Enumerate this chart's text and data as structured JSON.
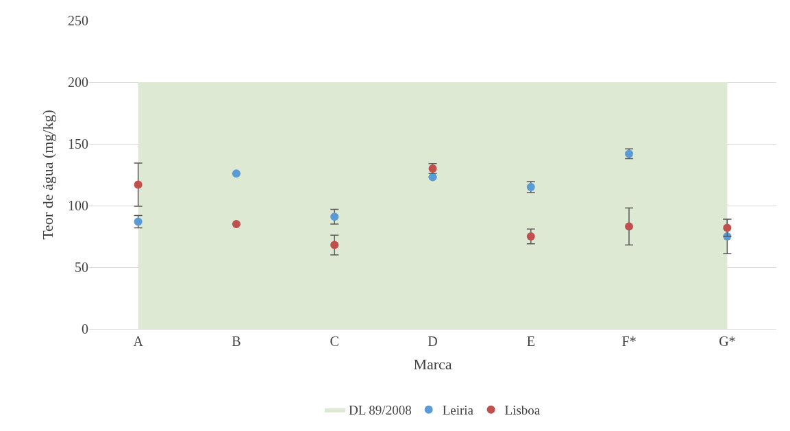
{
  "chart_data": {
    "type": "scatter",
    "xlabel": "Marca",
    "ylabel": "Teor de água (mg/kg)",
    "categories": [
      "A",
      "B",
      "C",
      "D",
      "E",
      "F*",
      "G*"
    ],
    "series": [
      {
        "name": "DL 89/2008",
        "type": "area",
        "color": "#dde9d3",
        "values": [
          200,
          200,
          200,
          200,
          200,
          200,
          200
        ]
      },
      {
        "name": "Leiria",
        "color": "#5b9bd5",
        "marker": "circle",
        "values": [
          87,
          126,
          91,
          123,
          115,
          142,
          75
        ],
        "errors": [
          5,
          null,
          6,
          null,
          4.5,
          4,
          14
        ]
      },
      {
        "name": "Lisboa",
        "color": "#c0504d",
        "marker": "circle",
        "values": [
          117,
          85,
          68,
          130,
          75,
          83,
          82
        ],
        "errors": [
          17.5,
          null,
          8,
          4,
          6,
          15,
          7
        ]
      }
    ],
    "ylim": [
      0,
      250
    ],
    "yticks": [
      0,
      50,
      100,
      150,
      200,
      250
    ],
    "grid": "y",
    "legend": "bottom"
  }
}
